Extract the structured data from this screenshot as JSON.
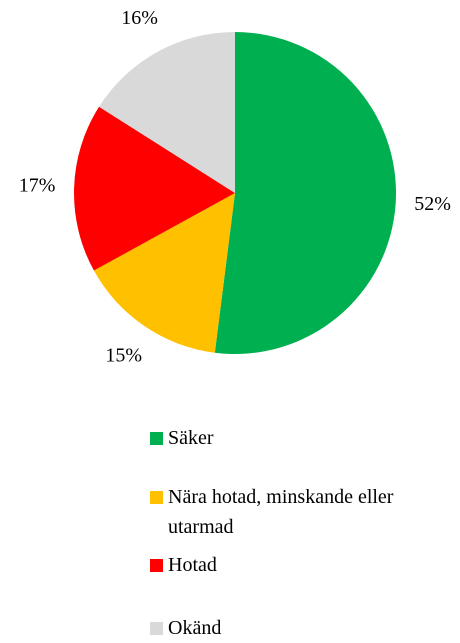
{
  "chart_data": {
    "type": "pie",
    "categories": [
      "Säker",
      "Nära hotad, minskande eller utarmad",
      "Hotad",
      "Okänd"
    ],
    "values": [
      52,
      15,
      17,
      16
    ],
    "value_labels": [
      "52%",
      "15%",
      "17%",
      "16%"
    ],
    "colors": [
      "#00b050",
      "#ffc000",
      "#ff0000",
      "#d9d9d9"
    ]
  }
}
